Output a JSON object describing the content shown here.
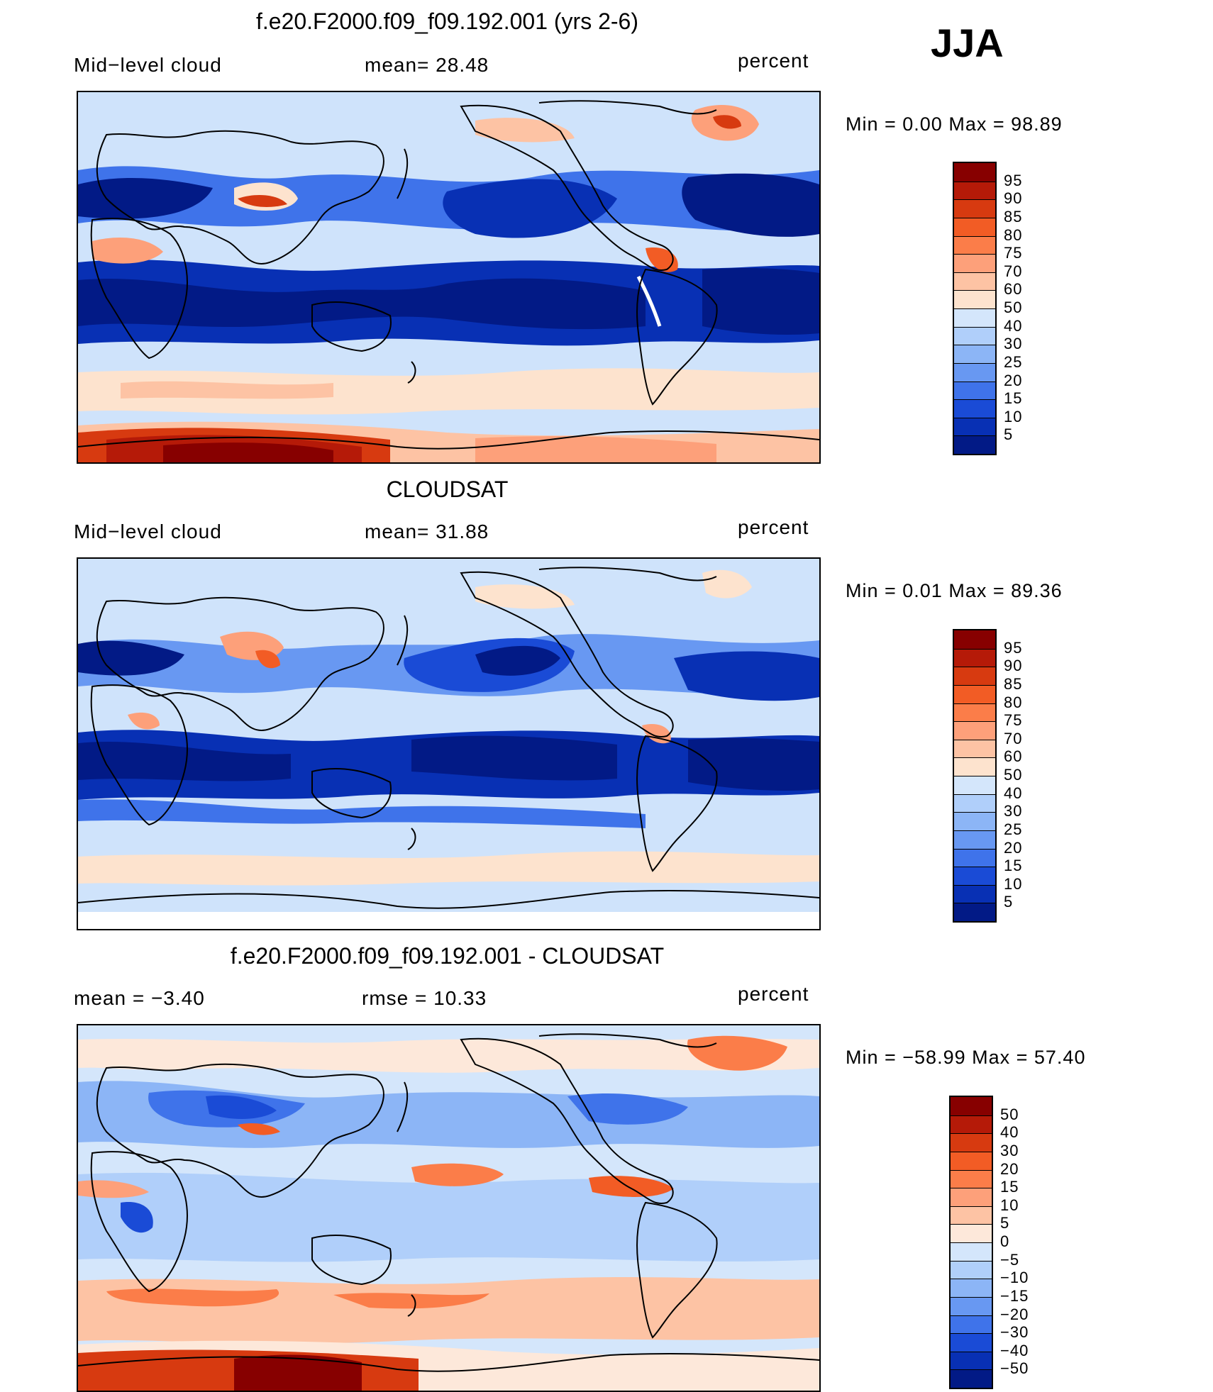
{
  "season_label": "JJA",
  "panels": [
    {
      "title": "f.e20.F2000.f09_f09.192.001 (yrs 2-6)",
      "left_label": "Mid−level cloud",
      "mid_label": "mean=   28.48",
      "right_label": "percent",
      "minmax": "Min  =     0.00  Max  =    98.89",
      "colorbar_labels": [
        "95",
        "90",
        "85",
        "80",
        "75",
        "70",
        "60",
        "50",
        "40",
        "30",
        "25",
        "20",
        "15",
        "10",
        "5"
      ],
      "colors": [
        "#870000",
        "#b51a08",
        "#d73a10",
        "#f25c25",
        "#fb7d49",
        "#fda07a",
        "#fdc3a4",
        "#fde3ce",
        "#d4e6fb",
        "#b0cffa",
        "#8cb5f6",
        "#6898f2",
        "#3f73ea",
        "#1a4bd6",
        "#0830b4",
        "#021a86"
      ]
    },
    {
      "title": "CLOUDSAT",
      "left_label": "Mid−level cloud",
      "mid_label": "mean=   31.88",
      "right_label": "percent",
      "minmax": "Min  =     0.01  Max  =    89.36",
      "colorbar_labels": [
        "95",
        "90",
        "85",
        "80",
        "75",
        "70",
        "60",
        "50",
        "40",
        "30",
        "25",
        "20",
        "15",
        "10",
        "5"
      ],
      "colors": [
        "#870000",
        "#b51a08",
        "#d73a10",
        "#f25c25",
        "#fb7d49",
        "#fda07a",
        "#fdc3a4",
        "#fde3ce",
        "#d4e6fb",
        "#b0cffa",
        "#8cb5f6",
        "#6898f2",
        "#3f73ea",
        "#1a4bd6",
        "#0830b4",
        "#021a86"
      ]
    },
    {
      "title": "f.e20.F2000.f09_f09.192.001 - CLOUDSAT",
      "left_label": "mean  =    −3.40",
      "mid_label": "rmse  =    10.33",
      "right_label": "percent",
      "minmax": "Min  = −58.99  Max  =    57.40",
      "colorbar_labels": [
        "50",
        "40",
        "30",
        "20",
        "15",
        "10",
        "5",
        "0",
        "−5",
        "−10",
        "−15",
        "−20",
        "−30",
        "−40",
        "−50"
      ],
      "colors": [
        "#870000",
        "#b51a08",
        "#d73a10",
        "#f25c25",
        "#fb7d49",
        "#fda07a",
        "#fdc3a4",
        "#fde8da",
        "#d4e6fb",
        "#b0cffa",
        "#8cb5f6",
        "#6898f2",
        "#3f73ea",
        "#1a4bd6",
        "#0830b4",
        "#021a86"
      ]
    }
  ],
  "chart_data": [
    {
      "type": "heatmap",
      "title": "f.e20.F2000.f09_f09.192.001 (yrs 2-6)",
      "variable": "Mid−level cloud",
      "units": "percent",
      "mean": 28.48,
      "min": 0.0,
      "max": 98.89,
      "contour_levels": [
        5,
        10,
        15,
        20,
        25,
        30,
        40,
        50,
        60,
        70,
        75,
        80,
        85,
        90,
        95
      ]
    },
    {
      "type": "heatmap",
      "title": "CLOUDSAT",
      "variable": "Mid−level cloud",
      "units": "percent",
      "mean": 31.88,
      "min": 0.01,
      "max": 89.36,
      "contour_levels": [
        5,
        10,
        15,
        20,
        25,
        30,
        40,
        50,
        60,
        70,
        75,
        80,
        85,
        90,
        95
      ]
    },
    {
      "type": "heatmap",
      "title": "f.e20.F2000.f09_f09.192.001 - CLOUDSAT",
      "units": "percent",
      "mean": -3.4,
      "rmse": 10.33,
      "min": -58.99,
      "max": 57.4,
      "contour_levels": [
        -50,
        -40,
        -30,
        -20,
        -15,
        -10,
        -5,
        0,
        5,
        10,
        15,
        20,
        30,
        40,
        50
      ]
    }
  ]
}
